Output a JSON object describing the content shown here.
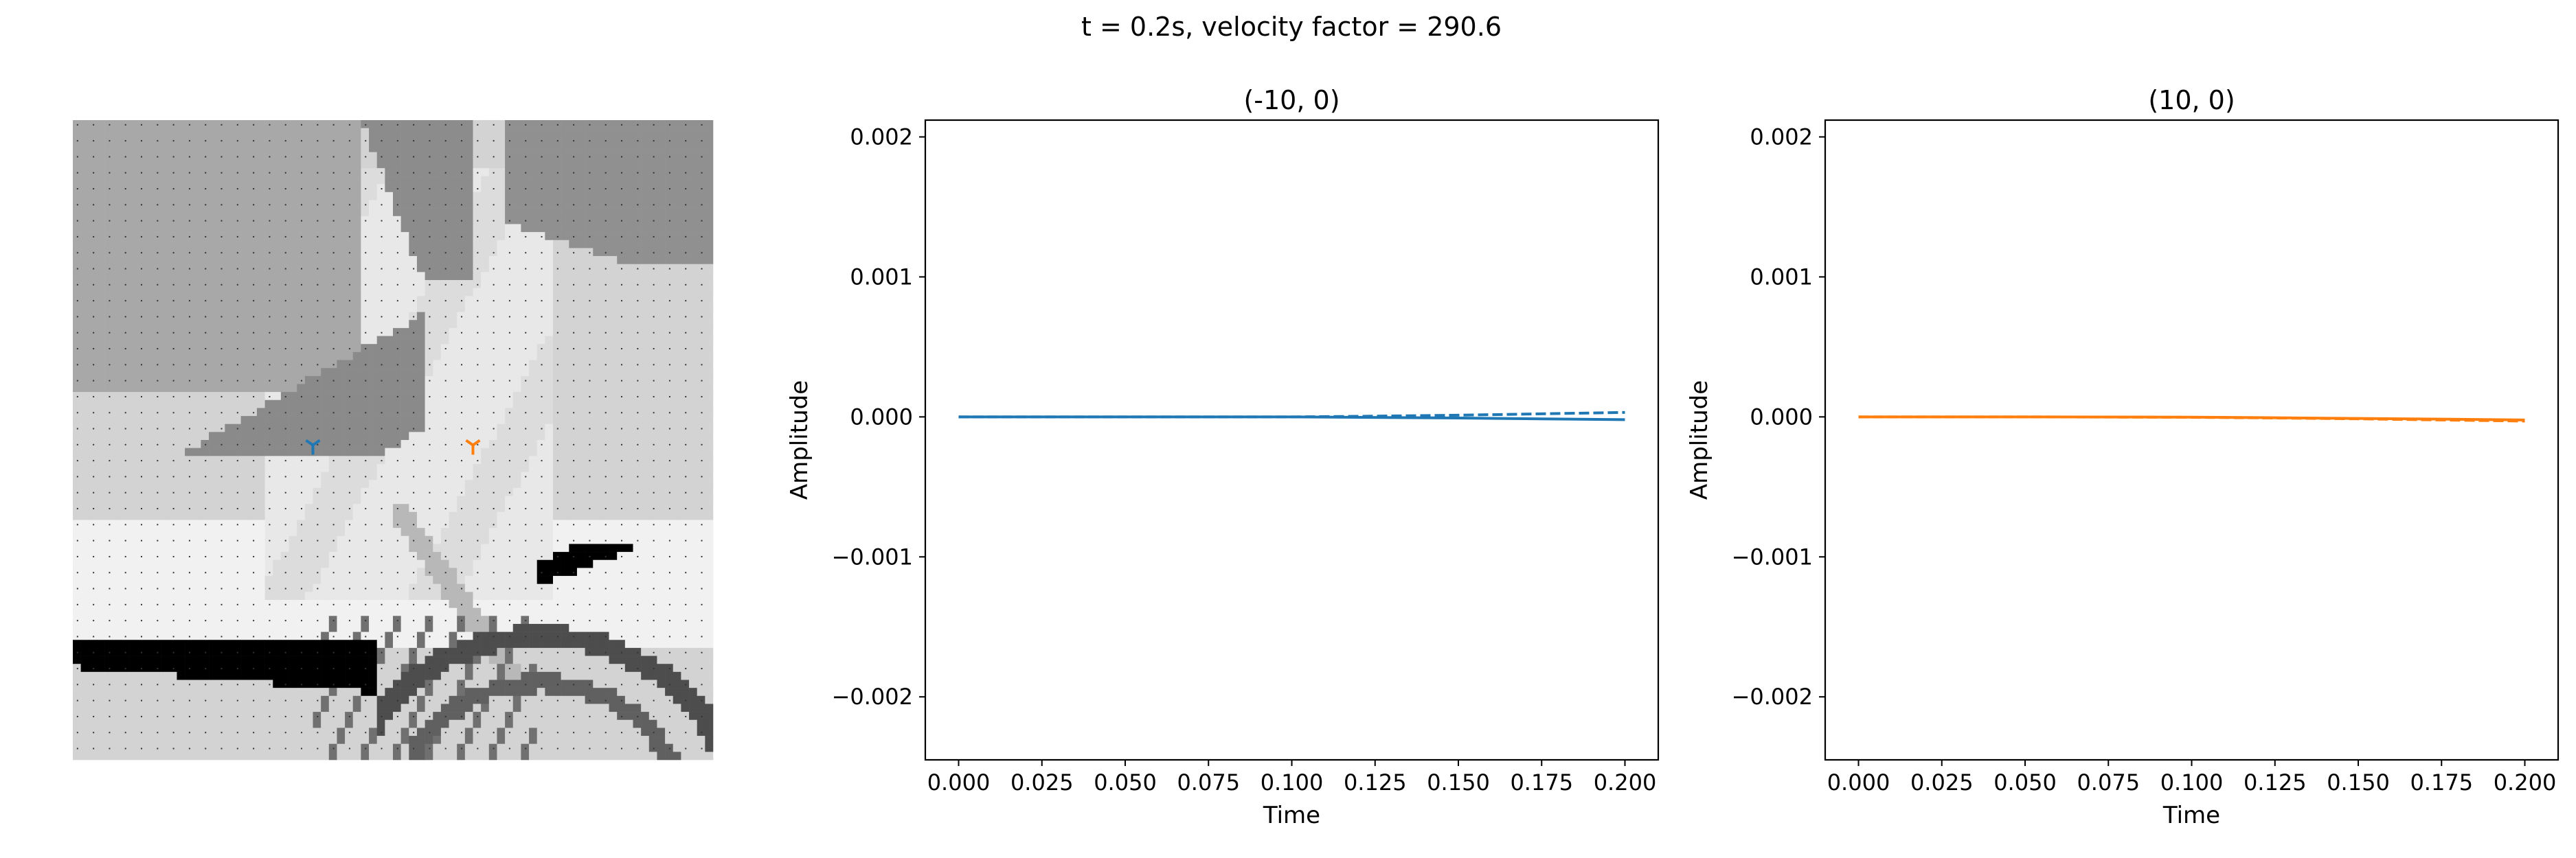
{
  "figure": {
    "suptitle": "t = 0.2s, velocity factor = 290.6"
  },
  "colors": {
    "series_left": "#1f77b4",
    "series_right": "#ff7f0e",
    "axes": "#000000"
  },
  "chart_data": [
    {
      "type": "heatmap",
      "description_of_content": "grayscale velocity model with two receiver markers and dotted grid",
      "grid_cells": [
        80,
        80
      ],
      "receivers": [
        {
          "label": "(-10, 0)",
          "marker": "tri_down",
          "color": "#1f77b4",
          "x": -10,
          "y": 0
        },
        {
          "label": "(10, 0)",
          "marker": "tri_down",
          "color": "#ff7f0e",
          "x": 10,
          "y": 0
        }
      ]
    },
    {
      "type": "line",
      "title": "(-10, 0)",
      "xlabel": "Time",
      "ylabel": "Amplitude",
      "xlim": [
        -0.01,
        0.21
      ],
      "ylim": [
        -0.00245,
        0.00212
      ],
      "xticks": [
        0.0,
        0.025,
        0.05,
        0.075,
        0.1,
        0.125,
        0.15,
        0.175,
        0.2
      ],
      "xtick_labels": [
        "0.000",
        "0.025",
        "0.050",
        "0.075",
        "0.100",
        "0.125",
        "0.150",
        "0.175",
        "0.200"
      ],
      "yticks": [
        0.002,
        0.001,
        0.0,
        -0.001,
        -0.002
      ],
      "ytick_labels": [
        "0.002",
        "0.001",
        "0.000",
        "−0.001",
        "−0.002"
      ],
      "series": [
        {
          "style": "dashed",
          "color": "#1f77b4",
          "x": [
            0.0,
            0.05,
            0.1,
            0.12,
            0.15,
            0.175,
            0.2
          ],
          "y": [
            0.0,
            0.0,
            0.0,
            4e-06,
            1.2e-05,
            2.2e-05,
            3.2e-05
          ]
        },
        {
          "style": "solid",
          "color": "#1f77b4",
          "x": [
            0.0,
            0.05,
            0.1,
            0.12,
            0.15,
            0.175,
            0.2
          ],
          "y": [
            0.0,
            0.0,
            0.0,
            -3e-06,
            -8e-06,
            -1.4e-05,
            -2e-05
          ]
        }
      ]
    },
    {
      "type": "line",
      "title": "(10, 0)",
      "xlabel": "Time",
      "ylabel": "Amplitude",
      "xlim": [
        -0.01,
        0.21
      ],
      "ylim": [
        -0.00245,
        0.00212
      ],
      "xticks": [
        0.0,
        0.025,
        0.05,
        0.075,
        0.1,
        0.125,
        0.15,
        0.175,
        0.2
      ],
      "xtick_labels": [
        "0.000",
        "0.025",
        "0.050",
        "0.075",
        "0.100",
        "0.125",
        "0.150",
        "0.175",
        "0.200"
      ],
      "yticks": [
        0.002,
        0.001,
        0.0,
        -0.001,
        -0.002
      ],
      "ytick_labels": [
        "0.002",
        "0.001",
        "0.000",
        "−0.001",
        "−0.002"
      ],
      "series": [
        {
          "style": "dashed",
          "color": "#ff7f0e",
          "x": [
            0.0,
            0.05,
            0.1,
            0.125,
            0.15,
            0.175,
            0.2
          ],
          "y": [
            0.0,
            0.0,
            -3e-06,
            -8e-06,
            -1.4e-05,
            -2.2e-05,
            -3e-05
          ]
        },
        {
          "style": "solid",
          "color": "#ff7f0e",
          "x": [
            0.0,
            0.05,
            0.1,
            0.125,
            0.15,
            0.175,
            0.2
          ],
          "y": [
            0.0,
            0.0,
            -2e-06,
            -6e-06,
            -1.1e-05,
            -1.6e-05,
            -2.2e-05
          ]
        }
      ]
    }
  ]
}
